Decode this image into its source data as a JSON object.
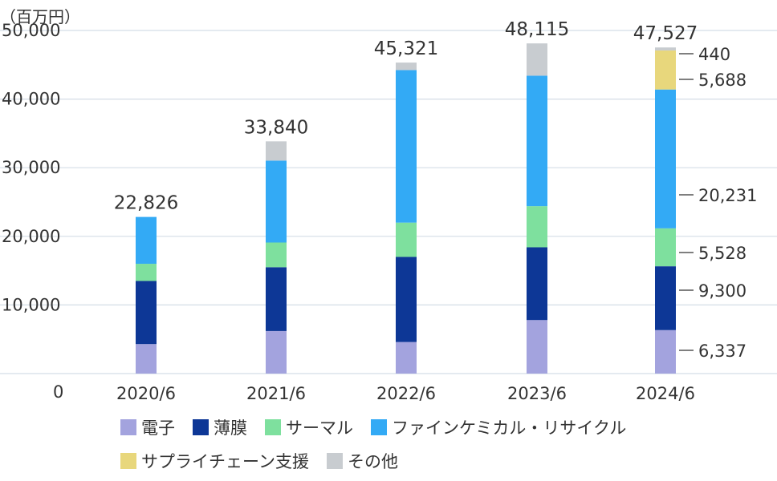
{
  "chart_data": {
    "type": "bar",
    "stacked": true,
    "unit_label": "（百万円）",
    "categories": [
      "2020/6",
      "2021/6",
      "2022/6",
      "2023/6",
      "2024/6"
    ],
    "ylim": [
      0,
      50000
    ],
    "yticks": [
      0,
      10000,
      20000,
      30000,
      40000,
      50000
    ],
    "ytick_labels": [
      "0",
      "10,000",
      "20,000",
      "30,000",
      "40,000",
      "50,000"
    ],
    "grid": true,
    "totals": [
      22826,
      33840,
      45321,
      48115,
      47527
    ],
    "total_labels": [
      "22,826",
      "33,840",
      "45,321",
      "48,115",
      "47,527"
    ],
    "series": [
      {
        "name": "電子",
        "color": "#a3a3de",
        "values": [
          4300,
          6200,
          4600,
          7800,
          6337
        ]
      },
      {
        "name": "薄膜",
        "color": "#0d3796",
        "values": [
          9200,
          9300,
          12400,
          10600,
          9300
        ]
      },
      {
        "name": "サーマル",
        "color": "#7ee09e",
        "values": [
          2500,
          3600,
          5000,
          6000,
          5528
        ]
      },
      {
        "name": "ファインケミカル・リサイクル",
        "color": "#33aaf5",
        "values": [
          6826,
          11940,
          22221,
          19015,
          20231
        ]
      },
      {
        "name": "サプライチェーン支援",
        "color": "#e8d77c",
        "values": [
          0,
          0,
          0,
          0,
          5688
        ]
      },
      {
        "name": "その他",
        "color": "#c8ccd0",
        "values": [
          0,
          2800,
          1100,
          4700,
          440
        ]
      }
    ],
    "annotations_2024": [
      "440",
      "5,688",
      "20,231",
      "5,528",
      "9,300",
      "6,337"
    ]
  }
}
